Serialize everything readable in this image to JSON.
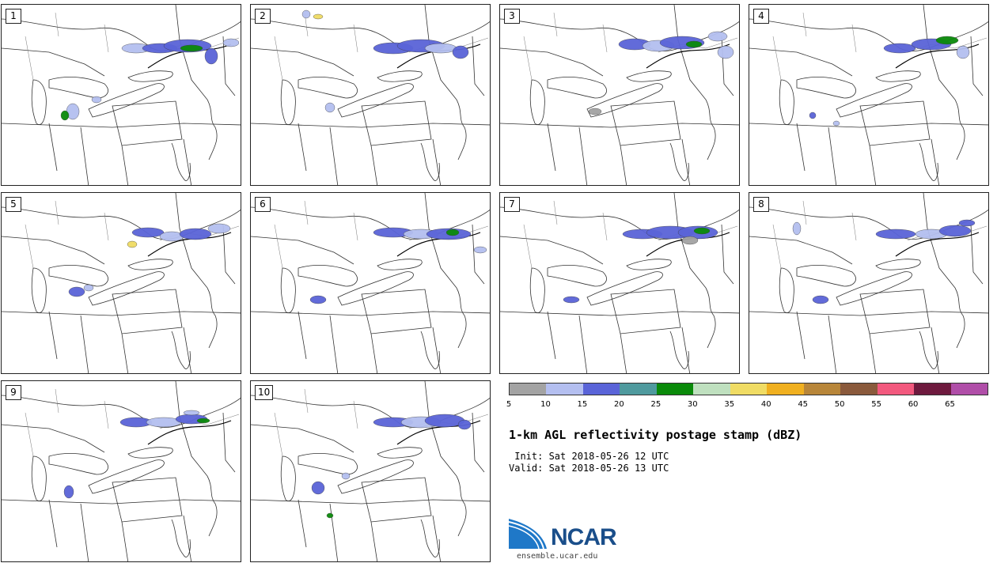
{
  "panels": [
    "1",
    "2",
    "3",
    "4",
    "5",
    "6",
    "7",
    "8",
    "9",
    "10"
  ],
  "legend": {
    "colors": [
      "#a3a3a3",
      "#b4bff0",
      "#5a64d8",
      "#4f9a9e",
      "#0a8a0a",
      "#bfe0bf",
      "#f0dc64",
      "#f0b020",
      "#b8863a",
      "#8a5a3c",
      "#f2597e",
      "#6e1a3e",
      "#b04ea8"
    ],
    "ticks": [
      "5",
      "10",
      "15",
      "20",
      "25",
      "30",
      "35",
      "40",
      "45",
      "50",
      "55",
      "60",
      "65"
    ]
  },
  "title": "1-km AGL reflectivity postage stamp (dBZ)",
  "init_line": " Init: Sat 2018-05-26 12 UTC",
  "valid_line": "Valid: Sat 2018-05-26 13 UTC",
  "logo": {
    "name": "NCAR",
    "url": "ensemble.ucar.edu"
  }
}
